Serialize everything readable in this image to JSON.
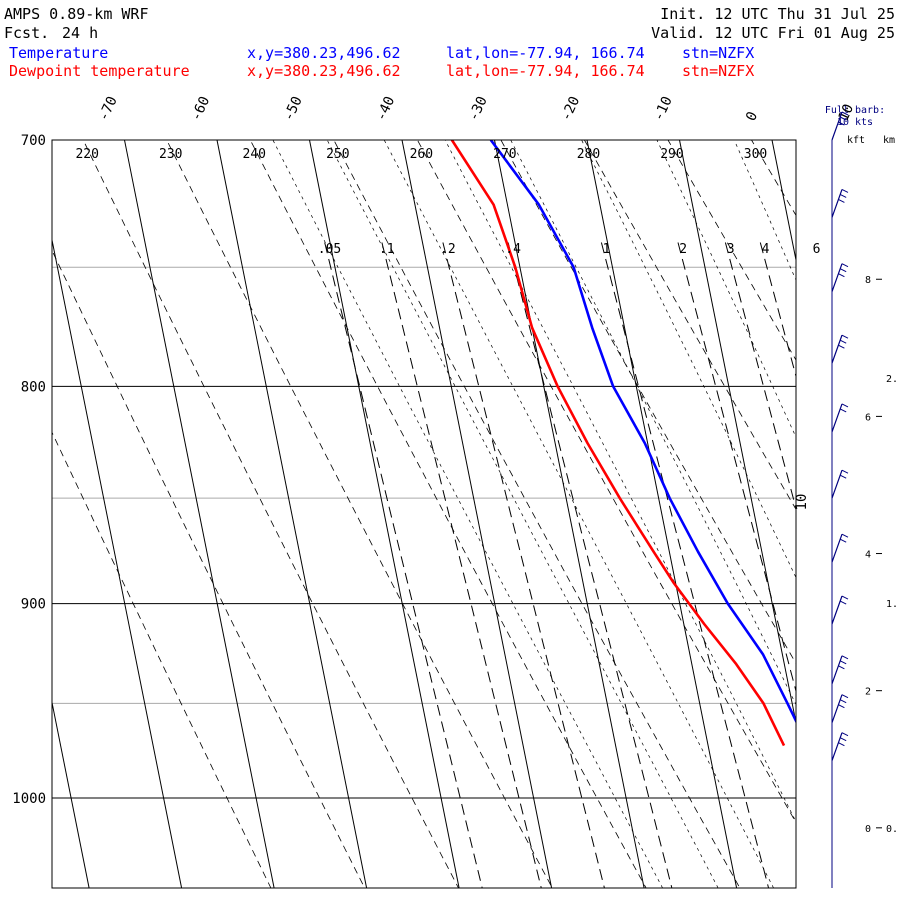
{
  "header": {
    "model": "AMPS 0.89-km WRF",
    "forecast_label": "Fcst.",
    "forecast_value": "24 h",
    "init": "Init. 12 UTC Thu 31 Jul 25",
    "valid": "Valid. 12 UTC Fri 01 Aug 25"
  },
  "legend": [
    {
      "name": "Temperature",
      "xy": "x,y=380.23,496.62",
      "latlon": "lat,lon=-77.94, 166.74",
      "stn": "stn=NZFX",
      "color": "#0000ff"
    },
    {
      "name": "Dewpoint temperature",
      "xy": "x,y=380.23,496.62",
      "latlon": "lat,lon=-77.94, 166.74",
      "stn": "stn=NZFX",
      "color": "#ff0000"
    }
  ],
  "barb_note": {
    "line1": "Full barb:",
    "line2": "10 kts"
  },
  "height_axis": {
    "kft_label": "kft",
    "km_label": "km"
  },
  "chart_data": {
    "type": "line",
    "diagram": "skew-T log-P",
    "pressure_levels": [
      700,
      800,
      900,
      1000
    ],
    "pressure_range": [
      700,
      1050
    ],
    "temperature_ticks": [
      -70,
      -60,
      -50,
      -40,
      -30,
      -20,
      -10,
      0,
      10
    ],
    "theta_labels": [
      220,
      230,
      240,
      250,
      260,
      270,
      280,
      290,
      300
    ],
    "mixing_ratio_labels": [
      ".05",
      ".1",
      ".2",
      ".4",
      "1",
      "2",
      "3",
      "4",
      "6"
    ],
    "kft_ticks": [
      0,
      2,
      4,
      6,
      8
    ],
    "km_ticks": [
      "0.",
      "1.",
      "2."
    ],
    "series": [
      {
        "name": "Temperature",
        "color": "#0000ff",
        "pressure": [
          700,
          725,
          750,
          775,
          800,
          825,
          850,
          875,
          900,
          925,
          950,
          972
        ],
        "temperature": [
          -30.4,
          -26.6,
          -24.2,
          -23.5,
          -22.5,
          -20.3,
          -18.8,
          -16.9,
          -14.8,
          -12.1,
          -10.5,
          -9.2
        ]
      },
      {
        "name": "Dewpoint temperature",
        "color": "#ff0000",
        "pressure": [
          700,
          725,
          750,
          775,
          800,
          825,
          850,
          875,
          890,
          910,
          930,
          950,
          972
        ],
        "temperature": [
          -34.6,
          -31.5,
          -30.5,
          -30.0,
          -28.5,
          -26.5,
          -24.2,
          -21.7,
          -20.2,
          -17.8,
          -15.2,
          -13.1,
          -11.8
        ]
      }
    ],
    "wind_barbs": [
      {
        "p": 700,
        "speed_kts": 10
      },
      {
        "p": 730,
        "speed_kts": 10
      },
      {
        "p": 760,
        "speed_kts": 10
      },
      {
        "p": 790,
        "speed_kts": 10
      },
      {
        "p": 820,
        "speed_kts": 5
      },
      {
        "p": 850,
        "speed_kts": 5
      },
      {
        "p": 880,
        "speed_kts": 5
      },
      {
        "p": 910,
        "speed_kts": 5
      },
      {
        "p": 940,
        "speed_kts": 10
      },
      {
        "p": 960,
        "speed_kts": 10
      },
      {
        "p": 980,
        "speed_kts": 10
      }
    ]
  }
}
